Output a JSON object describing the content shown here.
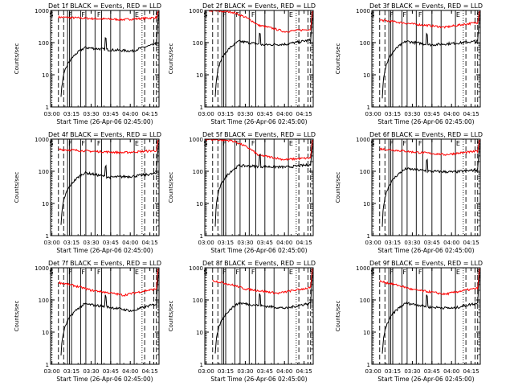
{
  "figure": {
    "background": "#ffffff",
    "axis_color": "#000000",
    "events_color": "#000000",
    "lld_color": "#ff0000"
  },
  "chart_data": [
    {
      "type": "line",
      "title": "Det 1f BLACK = Events, RED = LLD",
      "xlabel": "Start Time (26-Apr-06 02:45:00)",
      "ylabel": "Counts/sec",
      "yscale": "log",
      "ylim": [
        1,
        1000
      ],
      "yticks": [
        "1",
        "10",
        "100",
        "1000"
      ],
      "xlim": [
        "02:59",
        "04:22"
      ],
      "xticks": [
        "03:00",
        "03:15",
        "03:30",
        "03:45",
        "04:00",
        "04:15"
      ],
      "red_start": "03:05",
      "black_start": "03:07",
      "events_level": "~60-80",
      "lld_level": "~550-650",
      "markers": [
        "S",
        "F",
        "F",
        "F",
        "E",
        "S"
      ],
      "annotations": [
        "S",
        "F",
        "F",
        "F",
        "E",
        "S"
      ]
    },
    {
      "type": "line",
      "title": "Det 2f BLACK = Events, RED = LLD",
      "xlabel": "Start Time (26-Apr-06 02:45:00)",
      "ylabel": "Counts/sec",
      "yscale": "log",
      "ylim": [
        1,
        1000
      ],
      "yticks": [
        "1",
        "10",
        "100",
        "1000"
      ],
      "xlim": [
        "02:59",
        "04:22"
      ],
      "xticks": [
        "03:00",
        "03:15",
        "03:30",
        "03:45",
        "04:00",
        "04:15"
      ],
      "red_start": "02:59",
      "black_start": "03:07",
      "events_level": "~80-130",
      "lld_level": "~200-300",
      "markers": [
        "S",
        "F",
        "F",
        "F",
        "E",
        "S"
      ],
      "annotations": [
        "S",
        "F",
        "F",
        "F",
        "E",
        "S"
      ]
    },
    {
      "type": "line",
      "title": "Det 3f BLACK = Events, RED = LLD",
      "xlabel": "Start Time (26-Apr-06 02:45:00)",
      "ylabel": "Counts/sec",
      "yscale": "log",
      "ylim": [
        1,
        1000
      ],
      "yticks": [
        "1",
        "10",
        "100",
        "1000"
      ],
      "xlim": [
        "02:59",
        "04:22"
      ],
      "xticks": [
        "03:00",
        "03:15",
        "03:30",
        "03:45",
        "04:00",
        "04:15"
      ],
      "red_start": "03:05",
      "black_start": "03:07",
      "events_level": "~80-120",
      "lld_level": "~250-400",
      "markers": [
        "S",
        "F",
        "F",
        "F",
        "E",
        "S"
      ],
      "annotations": [
        "S",
        "F",
        "F",
        "F",
        "E",
        "S"
      ]
    },
    {
      "type": "line",
      "title": "Det 4f BLACK = Events, RED = LLD",
      "xlabel": "Start Time (26-Apr-06 02:45:00)",
      "ylabel": "Counts/sec",
      "yscale": "log",
      "ylim": [
        1,
        1000
      ],
      "yticks": [
        "1",
        "10",
        "100",
        "1000"
      ],
      "xlim": [
        "02:59",
        "04:22"
      ],
      "xticks": [
        "03:00",
        "03:15",
        "03:30",
        "03:45",
        "04:00",
        "04:15"
      ],
      "red_start": "03:05",
      "black_start": "03:07",
      "events_level": "~60-100",
      "lld_level": "~350-450",
      "markers": [
        "S",
        "F",
        "F",
        "F",
        "E",
        "S"
      ],
      "annotations": [
        "S",
        "F",
        "F",
        "F",
        "E",
        "S"
      ]
    },
    {
      "type": "line",
      "title": "Det 5f BLACK = Events, RED = LLD",
      "xlabel": "Start Time (26-Apr-06 02:45:00)",
      "ylabel": "Counts/sec",
      "yscale": "log",
      "ylim": [
        1,
        1000
      ],
      "yticks": [
        "1",
        "10",
        "100",
        "1000"
      ],
      "xlim": [
        "02:59",
        "04:22"
      ],
      "xticks": [
        "03:00",
        "03:15",
        "03:30",
        "03:45",
        "04:00",
        "04:15"
      ],
      "red_start": "02:59",
      "black_start": "03:07",
      "events_level": "~130-160",
      "lld_level": "~200-300",
      "markers": [
        "S",
        "F",
        "F",
        "F",
        "E",
        "S"
      ],
      "annotations": [
        "S",
        "F",
        "F",
        "F",
        "E",
        "S"
      ]
    },
    {
      "type": "line",
      "title": "Det 6f BLACK = Events, RED = LLD",
      "xlabel": "Start Time (26-Apr-06 02:45:00)",
      "ylabel": "Counts/sec",
      "yscale": "log",
      "ylim": [
        1,
        1000
      ],
      "yticks": [
        "1",
        "10",
        "100",
        "1000"
      ],
      "xlim": [
        "02:59",
        "04:22"
      ],
      "xticks": [
        "03:00",
        "03:15",
        "03:30",
        "03:45",
        "04:00",
        "04:15"
      ],
      "red_start": "03:05",
      "black_start": "03:07",
      "events_level": "~90-130",
      "lld_level": "~300-450",
      "markers": [
        "S",
        "F",
        "F",
        "F",
        "E",
        "S"
      ],
      "annotations": [
        "S",
        "F",
        "F",
        "F",
        "E",
        "S"
      ]
    },
    {
      "type": "line",
      "title": "Det 7f BLACK = Events, RED = LLD",
      "xlabel": "Start Time (26-Apr-06 02:45:00)",
      "ylabel": "Counts/sec",
      "yscale": "log",
      "ylim": [
        1,
        1000
      ],
      "yticks": [
        "1",
        "10",
        "100",
        "1000"
      ],
      "xlim": [
        "02:59",
        "04:22"
      ],
      "xticks": [
        "03:00",
        "03:15",
        "03:30",
        "03:45",
        "04:00",
        "04:15"
      ],
      "red_start": "03:05",
      "black_start": "03:07",
      "events_level": "~50-80",
      "lld_level": "~130-250",
      "markers": [
        "S",
        "F",
        "F",
        "F",
        "E",
        "S"
      ],
      "annotations": [
        "S",
        "F",
        "F",
        "F",
        "E",
        "S"
      ]
    },
    {
      "type": "line",
      "title": "Det 8f BLACK = Events, RED = LLD",
      "xlabel": "Start Time (26-Apr-06 02:45:00)",
      "ylabel": "Counts/sec",
      "yscale": "log",
      "ylim": [
        1,
        1000
      ],
      "yticks": [
        "1",
        "10",
        "100",
        "1000"
      ],
      "xlim": [
        "02:59",
        "04:22"
      ],
      "xticks": [
        "03:00",
        "03:15",
        "03:30",
        "03:45",
        "04:00",
        "04:15"
      ],
      "red_start": "03:05",
      "black_start": "03:07",
      "events_level": "~60-90",
      "lld_level": "~150-250",
      "markers": [
        "S",
        "F",
        "F",
        "F",
        "E",
        "S"
      ],
      "annotations": [
        "S",
        "F",
        "F",
        "F",
        "E",
        "S"
      ]
    },
    {
      "type": "line",
      "title": "Det 9f BLACK = Events, RED = LLD",
      "xlabel": "Start Time (26-Apr-06 02:45:00)",
      "ylabel": "Counts/sec",
      "yscale": "log",
      "ylim": [
        1,
        1000
      ],
      "yticks": [
        "1",
        "10",
        "100",
        "1000"
      ],
      "xlim": [
        "02:59",
        "04:22"
      ],
      "xticks": [
        "03:00",
        "03:15",
        "03:30",
        "03:45",
        "04:00",
        "04:15"
      ],
      "red_start": "03:05",
      "black_start": "03:07",
      "events_level": "~60-90",
      "lld_level": "~150-250",
      "markers": [
        "S",
        "F",
        "F",
        "F",
        "E",
        "S"
      ],
      "annotations": [
        "S",
        "F",
        "F",
        "F",
        "E",
        "S"
      ]
    }
  ]
}
